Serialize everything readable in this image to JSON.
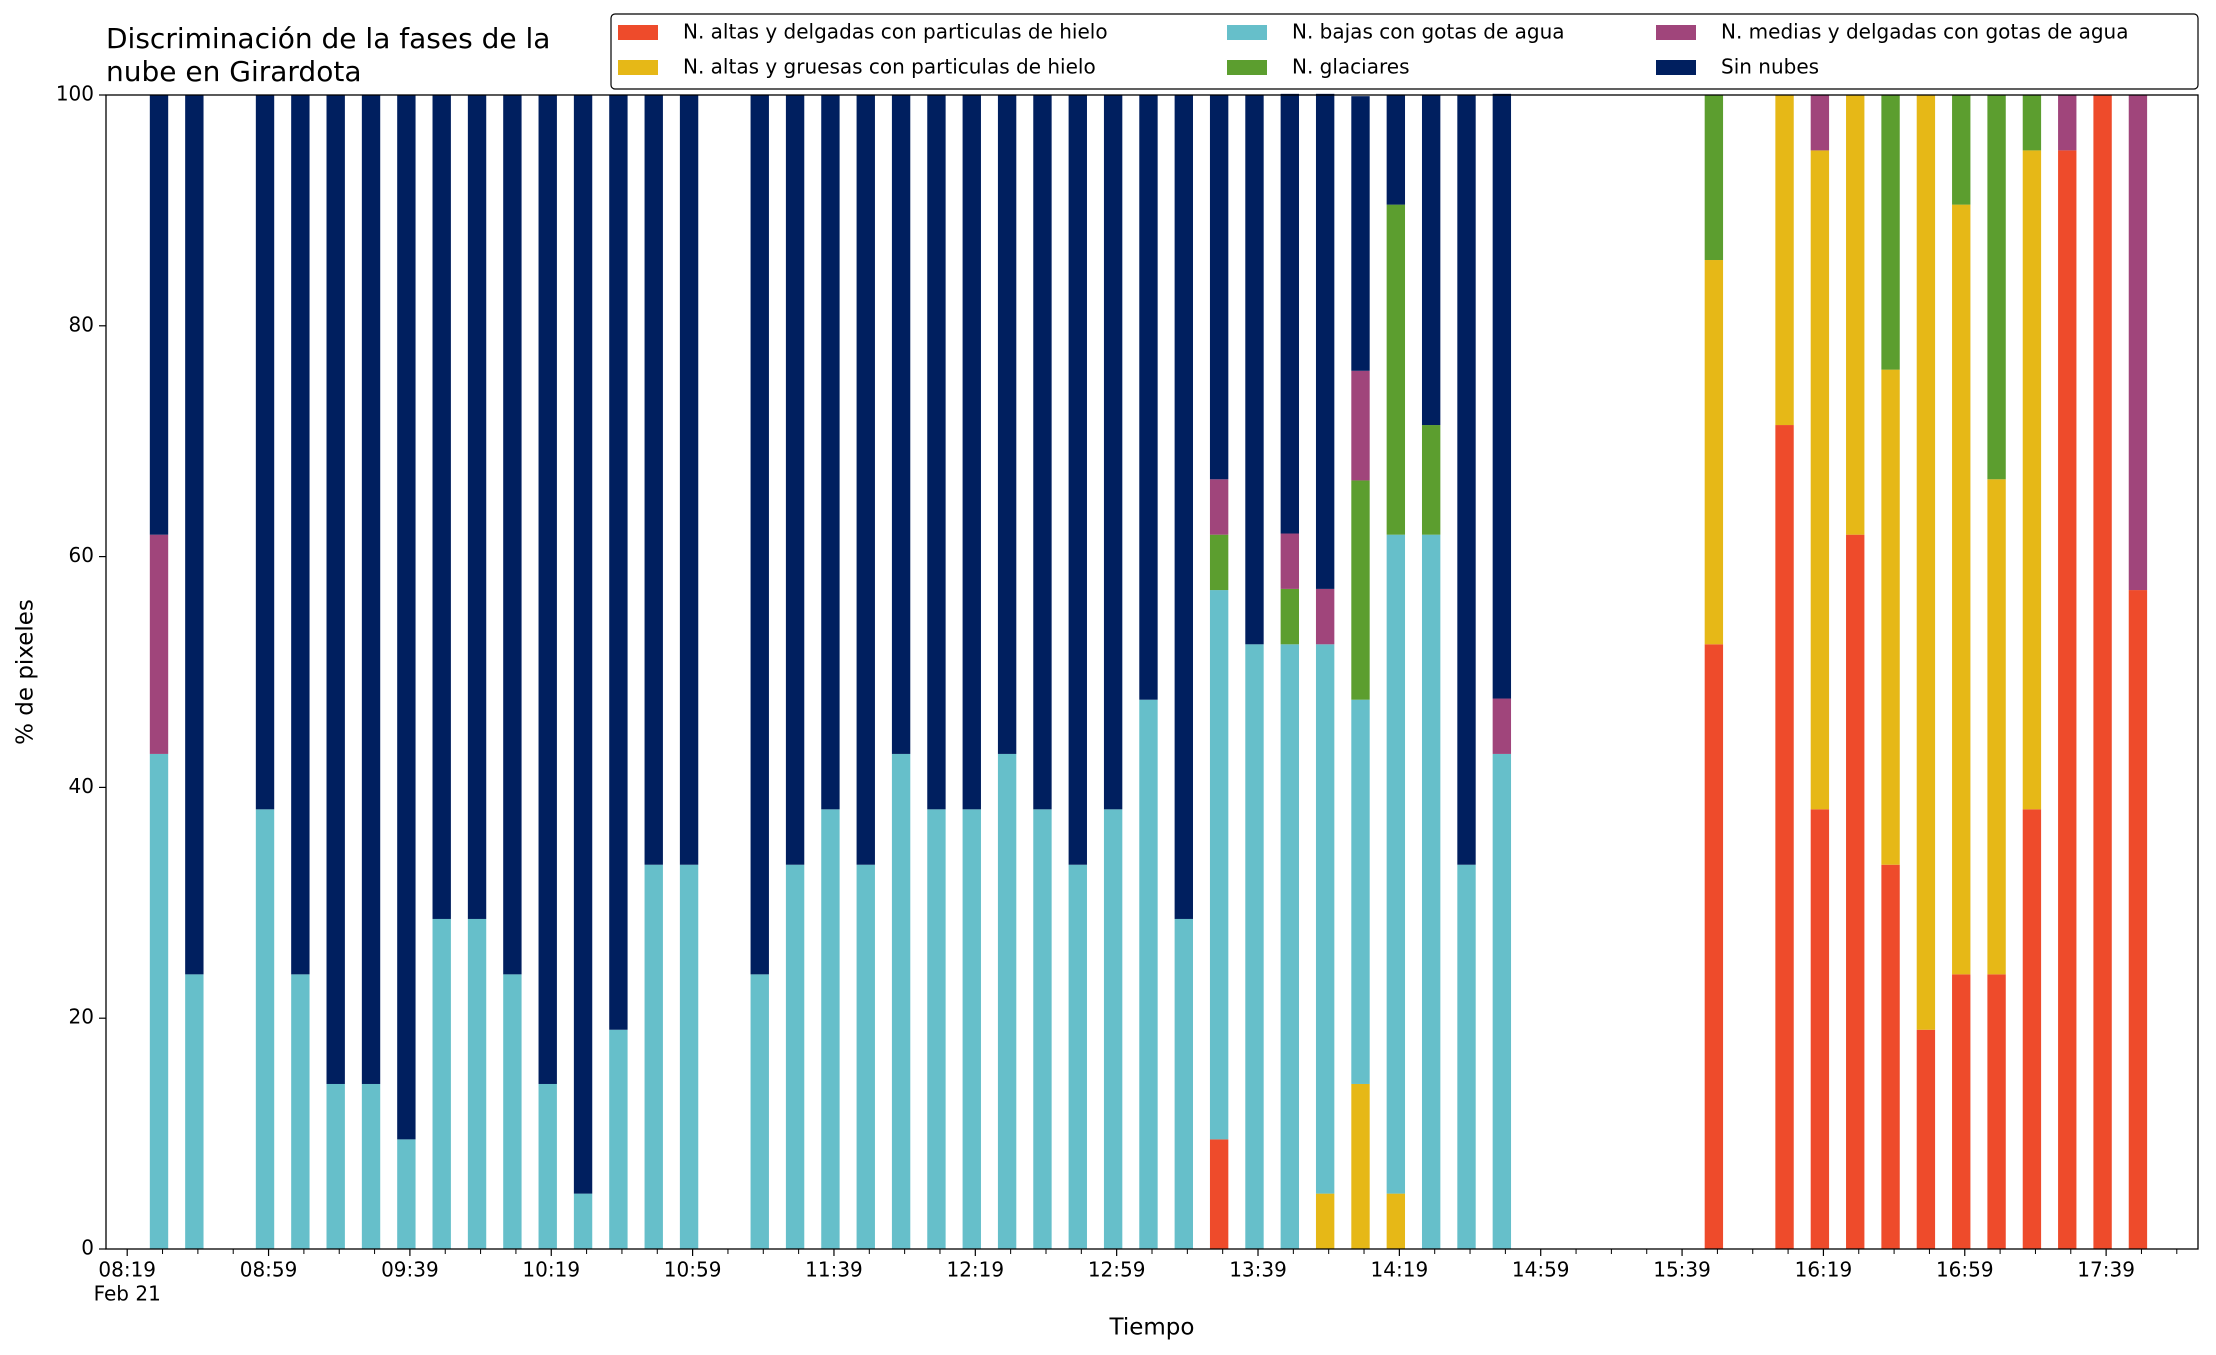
{
  "chart_data": {
    "type": "stacked_bar",
    "title": [
      "Discriminación de la fases de la",
      "nube en Girardota"
    ],
    "xlabel": "Tiempo",
    "ylabel": "% de pixeles",
    "x_date_label": "Feb 21",
    "x": [
      "08:28",
      "08:38",
      "08:58",
      "09:08",
      "09:18",
      "09:28",
      "09:38",
      "09:48",
      "09:58",
      "10:08",
      "10:18",
      "10:28",
      "10:38",
      "10:48",
      "10:58",
      "11:18",
      "11:28",
      "11:38",
      "11:48",
      "11:58",
      "12:08",
      "12:18",
      "12:28",
      "12:38",
      "12:48",
      "12:58",
      "13:08",
      "13:18",
      "13:28",
      "13:38",
      "13:48",
      "13:58",
      "14:08",
      "14:18",
      "14:28",
      "14:38",
      "14:48",
      "15:48",
      "16:08",
      "16:18",
      "16:28",
      "16:38",
      "16:48",
      "16:58",
      "17:08",
      "17:18",
      "17:28",
      "17:38",
      "17:48"
    ],
    "series": [
      {
        "name": "N. altas y delgadas con particulas de hielo",
        "color": "#ee4b2b",
        "values": [
          0,
          0,
          0,
          0,
          0,
          0,
          0,
          0,
          0,
          0,
          0,
          0,
          0,
          0,
          0,
          0,
          0,
          0,
          0,
          0,
          0,
          0,
          0,
          0,
          0,
          0,
          0,
          0,
          9.5,
          0,
          0,
          0,
          0,
          0,
          0,
          0,
          0,
          52.4,
          71.4,
          38.1,
          61.9,
          33.3,
          19.0,
          23.8,
          23.8,
          38.1,
          95.2,
          100,
          57.1
        ]
      },
      {
        "name": "N. altas y gruesas con particulas de hielo",
        "color": "#e6b817",
        "values": [
          0,
          0,
          0,
          0,
          0,
          0,
          0,
          0,
          0,
          0,
          0,
          0,
          0,
          0,
          0,
          0,
          0,
          0,
          0,
          0,
          0,
          0,
          0,
          0,
          0,
          0,
          0,
          0,
          0,
          0,
          0,
          4.8,
          14.3,
          4.8,
          0,
          0,
          0,
          33.3,
          28.6,
          57.1,
          38.1,
          42.9,
          81.0,
          66.7,
          42.9,
          57.1,
          0,
          0,
          0
        ]
      },
      {
        "name": "N. bajas con gotas de agua",
        "color": "#66bfca",
        "values": [
          42.9,
          23.8,
          38.1,
          23.8,
          14.3,
          14.3,
          9.5,
          28.6,
          28.6,
          23.8,
          14.3,
          4.8,
          19.0,
          33.3,
          33.3,
          23.8,
          33.3,
          38.1,
          33.3,
          42.9,
          38.1,
          38.1,
          42.9,
          38.1,
          33.3,
          38.1,
          47.6,
          28.6,
          47.6,
          52.4,
          52.4,
          47.6,
          33.3,
          57.1,
          61.9,
          33.3,
          42.9,
          0,
          0,
          0,
          0,
          0,
          0,
          0,
          0,
          0,
          0,
          0,
          0
        ]
      },
      {
        "name": "N. glaciares",
        "color": "#5c9e2f",
        "values": [
          0,
          0,
          0,
          0,
          0,
          0,
          0,
          0,
          0,
          0,
          0,
          0,
          0,
          0,
          0,
          0,
          0,
          0,
          0,
          0,
          0,
          0,
          0,
          0,
          0,
          0,
          0,
          0,
          4.8,
          0,
          4.8,
          0,
          19.0,
          28.6,
          9.5,
          0,
          0,
          14.3,
          0,
          0,
          0,
          23.8,
          0,
          9.5,
          33.3,
          4.8,
          0,
          0,
          0
        ]
      },
      {
        "name": "N. medias y delgadas con gotas de agua",
        "color": "#a0457b",
        "values": [
          19.0,
          0,
          0,
          0,
          0,
          0,
          0,
          0,
          0,
          0,
          0,
          0,
          0,
          0,
          0,
          0,
          0,
          0,
          0,
          0,
          0,
          0,
          0,
          0,
          0,
          0,
          0,
          0,
          4.8,
          0,
          4.8,
          4.8,
          9.5,
          0,
          0,
          0,
          4.8,
          0,
          0,
          4.8,
          0,
          0,
          0,
          0,
          0,
          0,
          4.8,
          0,
          42.9
        ]
      },
      {
        "name": "Sin nubes",
        "color": "#001f5f",
        "values": [
          38.1,
          76.2,
          61.9,
          76.2,
          85.7,
          85.7,
          90.5,
          71.4,
          71.4,
          76.2,
          85.7,
          95.2,
          81.0,
          66.7,
          66.7,
          76.2,
          66.7,
          61.9,
          66.7,
          57.1,
          61.9,
          61.9,
          57.1,
          61.9,
          66.7,
          61.9,
          52.4,
          71.4,
          33.3,
          47.6,
          38.1,
          42.9,
          23.8,
          9.5,
          28.6,
          66.7,
          52.4,
          0,
          0,
          0,
          0,
          0,
          0,
          0,
          0,
          0,
          0,
          0,
          0
        ]
      }
    ],
    "xlim": [
      "08:13",
      "18:05"
    ],
    "xticks": [
      "08:19",
      "08:59",
      "09:39",
      "10:19",
      "10:59",
      "11:39",
      "12:19",
      "12:59",
      "13:39",
      "14:19",
      "14:59",
      "15:39",
      "16:19",
      "16:59",
      "17:39"
    ],
    "xminorticks": [
      "08:29",
      "08:39",
      "08:49",
      "09:09",
      "09:19",
      "09:29",
      "09:49",
      "09:59",
      "10:09",
      "10:29",
      "10:39",
      "10:49",
      "11:09",
      "11:19",
      "11:29",
      "11:49",
      "11:59",
      "12:09",
      "12:29",
      "12:39",
      "12:49",
      "13:09",
      "13:19",
      "13:29",
      "13:49",
      "13:59",
      "14:09",
      "14:29",
      "14:39",
      "14:49",
      "15:09",
      "15:19",
      "15:29",
      "15:49",
      "15:59",
      "16:09",
      "16:29",
      "16:39",
      "16:49",
      "17:09",
      "17:19",
      "17:29",
      "17:49",
      "17:59"
    ],
    "ylim": [
      0,
      100
    ],
    "yticks": [
      0,
      20,
      40,
      60,
      80,
      100
    ],
    "grid": false,
    "legend": "upper right"
  }
}
